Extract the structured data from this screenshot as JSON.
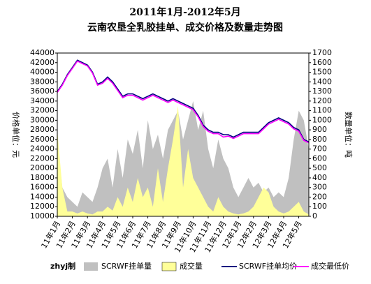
{
  "chart_data": {
    "type": "line",
    "title": "2011年1月-2012年5月",
    "subtitle": "云南农垦全乳胶挂单、成交价格及数量走势图",
    "y_label": "价格单位：元",
    "y2_label": "数量单位：吨",
    "note": "zhyj制",
    "categories": [
      "11年1月",
      null,
      null,
      "11年2月",
      null,
      null,
      "11年3月",
      null,
      null,
      "11年4月",
      null,
      null,
      "11年5月",
      null,
      null,
      "11年6月",
      null,
      null,
      "11年7月",
      null,
      null,
      "11年8月",
      null,
      null,
      "11年9月",
      null,
      null,
      "11年10月",
      null,
      null,
      "11年11月",
      null,
      null,
      "11年12月",
      null,
      null,
      "12年1月",
      null,
      null,
      "12年2月",
      null,
      null,
      "12年3月",
      null,
      null,
      "12年4月",
      null,
      null,
      "12年5月",
      null,
      null
    ],
    "ylim": [
      10000,
      44000
    ],
    "yticks": [
      10000,
      12000,
      14000,
      16000,
      18000,
      20000,
      22000,
      24000,
      26000,
      28000,
      30000,
      32000,
      34000,
      36000,
      38000,
      40000,
      42000,
      44000
    ],
    "y2lim": [
      0,
      1700
    ],
    "y2ticks": [
      0,
      100,
      200,
      300,
      400,
      500,
      600,
      700,
      800,
      900,
      1000,
      1100,
      1200,
      1300,
      1400,
      1500,
      1600,
      1700
    ],
    "series": [
      {
        "name": "SCRWF挂单量",
        "color": "#c0c0c0",
        "kind": "area",
        "axis": "y2",
        "values": [
          800,
          300,
          200,
          150,
          100,
          250,
          200,
          150,
          300,
          500,
          600,
          300,
          700,
          400,
          800,
          650,
          900,
          500,
          1000,
          700,
          850,
          600,
          900,
          1000,
          1100,
          800,
          1000,
          1200,
          900,
          1100,
          700,
          500,
          800,
          600,
          500,
          300,
          200,
          300,
          400,
          300,
          350,
          250,
          300,
          200,
          250,
          200,
          400,
          800,
          1100,
          1000,
          700
        ]
      },
      {
        "name": "成交量",
        "color": "#ffff99",
        "kind": "area",
        "axis": "y2",
        "values": [
          900,
          300,
          50,
          50,
          30,
          50,
          30,
          20,
          50,
          50,
          100,
          60,
          200,
          100,
          300,
          150,
          400,
          200,
          300,
          100,
          500,
          150,
          500,
          800,
          1150,
          300,
          700,
          400,
          300,
          200,
          100,
          50,
          200,
          100,
          50,
          30,
          20,
          30,
          50,
          100,
          200,
          300,
          250,
          100,
          50,
          30,
          50,
          100,
          150,
          50,
          20
        ]
      },
      {
        "name": "SCRWF挂单均价",
        "color": "#000080",
        "kind": "line",
        "values": [
          36000,
          37500,
          39500,
          41000,
          42500,
          42000,
          41500,
          40000,
          37500,
          38000,
          39000,
          38000,
          36500,
          35000,
          35500,
          35500,
          35000,
          34500,
          35000,
          35500,
          35000,
          34500,
          34000,
          34500,
          34000,
          33500,
          33000,
          32500,
          31000,
          29000,
          28000,
          27500,
          27500,
          27000,
          27000,
          26500,
          27000,
          27500,
          27500,
          27500,
          27500,
          28500,
          29500,
          30000,
          30500,
          30000,
          29500,
          28500,
          28000,
          26000,
          25500
        ]
      },
      {
        "name": "成交最低价",
        "color": "#ff00ff",
        "kind": "line",
        "values": [
          35800,
          37300,
          39300,
          40800,
          42300,
          41800,
          41300,
          39800,
          37300,
          37700,
          38700,
          37700,
          36200,
          34700,
          35200,
          35200,
          34700,
          34200,
          34700,
          35200,
          34700,
          34200,
          33700,
          34200,
          33700,
          33200,
          32700,
          32200,
          30700,
          28700,
          27700,
          27200,
          27200,
          26500,
          26700,
          26200,
          26700,
          27200,
          27200,
          27200,
          27200,
          28200,
          29200,
          29700,
          30200,
          29700,
          29200,
          28200,
          27700,
          25800,
          25300
        ]
      }
    ]
  }
}
